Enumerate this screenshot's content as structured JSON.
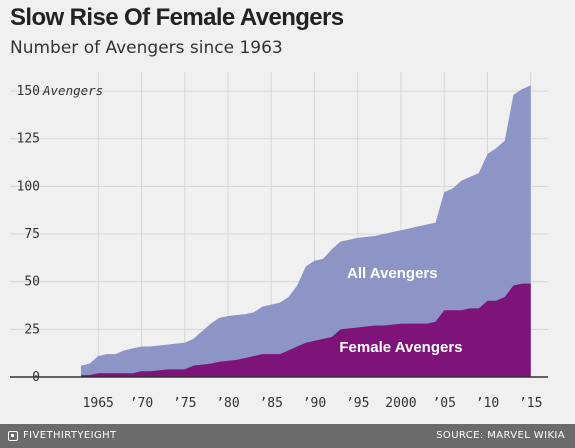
{
  "title": "Slow Rise Of Female Avengers",
  "subtitle": "Number of Avengers since 1963",
  "footer": {
    "brand": "FIVETHIRTYEIGHT",
    "brand_icon": "fivethirtyeight-logo-icon",
    "source": "SOURCE: MARVEL WIKIA"
  },
  "chart_data": {
    "type": "area",
    "title": "Slow Rise Of Female Avengers",
    "subtitle": "Number of Avengers since 1963",
    "xlim": [
      1960,
      2017
    ],
    "ylim": [
      0,
      160
    ],
    "y_ticks": [
      0,
      25,
      50,
      75,
      100,
      125,
      150
    ],
    "y_tick_labels": [
      "0",
      "25",
      "50",
      "75",
      "100",
      "125",
      "150"
    ],
    "y_unit_label": "Avengers",
    "x_ticks": [
      1965,
      1970,
      1975,
      1980,
      1985,
      1990,
      1995,
      2000,
      2005,
      2010,
      2015
    ],
    "x_tick_labels": [
      "1965",
      "’70",
      "’75",
      "’80",
      "’85",
      "’90",
      "’95",
      "2000",
      "’05",
      "’10",
      "’15"
    ],
    "grid": true,
    "x": [
      1963,
      1964,
      1965,
      1966,
      1967,
      1968,
      1969,
      1970,
      1971,
      1972,
      1973,
      1974,
      1975,
      1976,
      1977,
      1978,
      1979,
      1980,
      1981,
      1982,
      1983,
      1984,
      1985,
      1986,
      1987,
      1988,
      1989,
      1990,
      1991,
      1992,
      1993,
      1994,
      1995,
      1996,
      1997,
      1998,
      1999,
      2000,
      2001,
      2002,
      2003,
      2004,
      2005,
      2006,
      2007,
      2008,
      2009,
      2010,
      2011,
      2012,
      2013,
      2014,
      2015
    ],
    "series": [
      {
        "name": "All Avengers",
        "color": "#8d95c6",
        "values": [
          6,
          7,
          11,
          12,
          12,
          14,
          15,
          16,
          16,
          16.5,
          17,
          17.5,
          18,
          20,
          24,
          28,
          31,
          32,
          32.5,
          33,
          34,
          37,
          38,
          39,
          42,
          48,
          58,
          61,
          62,
          67,
          71,
          72,
          73,
          73.5,
          74,
          75,
          76,
          77,
          78,
          79,
          80,
          81,
          97,
          99,
          103,
          105,
          107,
          117,
          120,
          124,
          148,
          151,
          153
        ]
      },
      {
        "name": "Female Avengers",
        "color": "#7e1379",
        "values": [
          1,
          1,
          2,
          2,
          2,
          2,
          2,
          3,
          3,
          3.5,
          4,
          4,
          4,
          6,
          6.5,
          7,
          8,
          8.5,
          9,
          10,
          11,
          12,
          12,
          12,
          14,
          16,
          18,
          19,
          20,
          21,
          25,
          25.5,
          26,
          26.5,
          27,
          27,
          27.5,
          28,
          28,
          28,
          28,
          29,
          35,
          35,
          35,
          36,
          36,
          40,
          40,
          42,
          48,
          49,
          49
        ]
      }
    ],
    "area_labels": [
      {
        "text": "All Avengers",
        "x": 1999,
        "y": 52
      },
      {
        "text": "Female Avengers",
        "x": 2000,
        "y": 13
      }
    ]
  }
}
